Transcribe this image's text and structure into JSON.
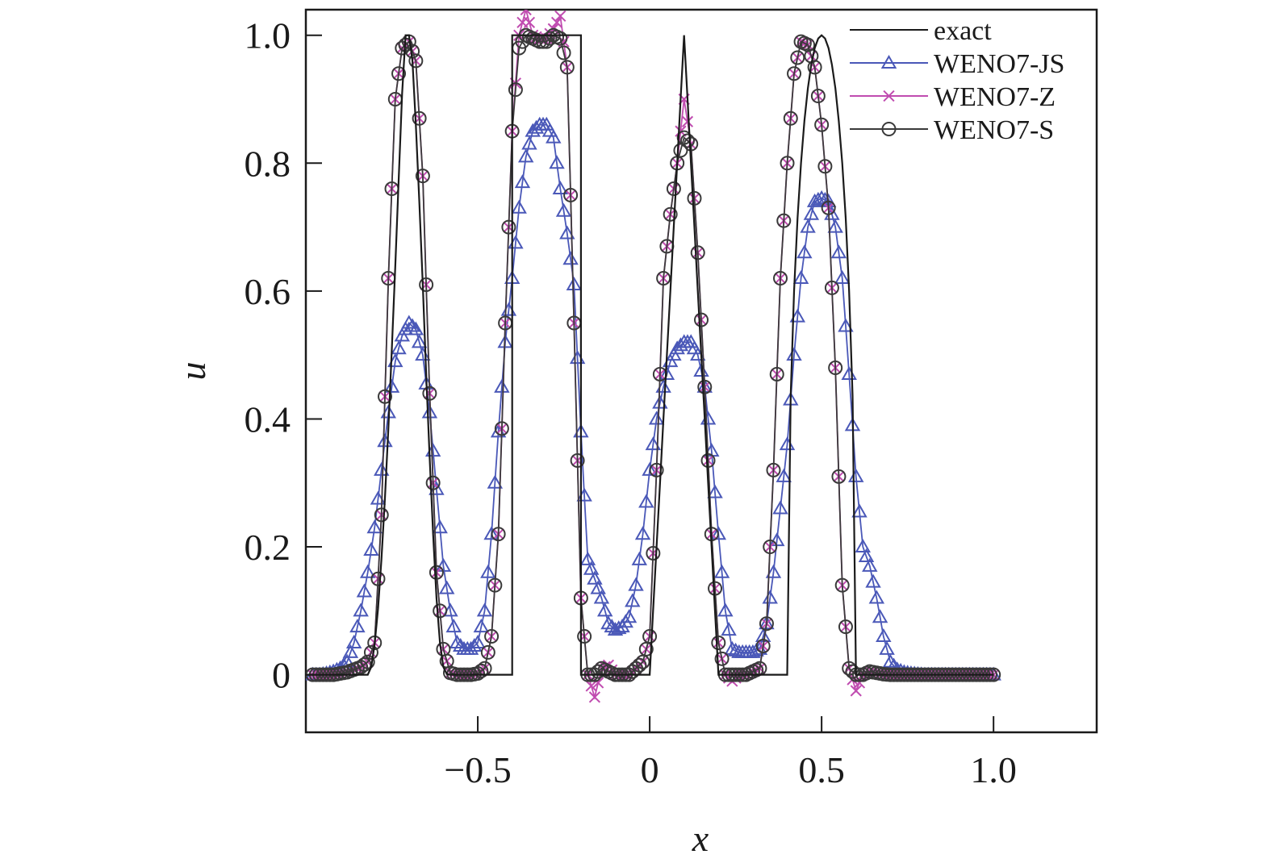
{
  "chart_data": {
    "type": "line",
    "title": "",
    "xlabel": "x",
    "ylabel": "u",
    "xlim": [
      -1.0,
      1.3
    ],
    "ylim": [
      -0.09,
      1.04
    ],
    "x_ticks": [
      -0.5,
      0,
      0.5,
      1.0
    ],
    "x_tick_labels": [
      "−0.5",
      "0",
      "0.5",
      "1.0"
    ],
    "y_ticks": [
      0,
      0.2,
      0.4,
      0.6,
      0.8,
      1.0
    ],
    "y_tick_labels": [
      "0",
      "0.2",
      "0.4",
      "0.6",
      "0.8",
      "1.0"
    ],
    "grid": false,
    "legend_position": "top-right",
    "sample_step": 0.01,
    "series": [
      {
        "name": "exact",
        "marker": "none",
        "color": "#1a1a1a",
        "x": [
          -1.0,
          -0.82,
          -0.81,
          -0.8,
          -0.79,
          -0.78,
          -0.77,
          -0.76,
          -0.75,
          -0.74,
          -0.73,
          -0.72,
          -0.71,
          -0.7,
          -0.69,
          -0.68,
          -0.67,
          -0.66,
          -0.65,
          -0.64,
          -0.63,
          -0.62,
          -0.61,
          -0.6,
          -0.59,
          -0.58,
          -0.4,
          -0.4,
          -0.2,
          -0.2,
          0.0,
          0.01,
          0.02,
          0.03,
          0.04,
          0.05,
          0.06,
          0.07,
          0.08,
          0.09,
          0.1,
          0.11,
          0.12,
          0.13,
          0.14,
          0.15,
          0.16,
          0.17,
          0.18,
          0.19,
          0.2,
          0.4,
          0.41,
          0.42,
          0.43,
          0.44,
          0.45,
          0.46,
          0.47,
          0.48,
          0.49,
          0.5,
          0.51,
          0.52,
          0.53,
          0.54,
          0.55,
          0.56,
          0.57,
          0.58,
          0.59,
          0.6,
          1.0
        ],
        "y": [
          0,
          0,
          0.012,
          0.047,
          0.104,
          0.181,
          0.276,
          0.386,
          0.508,
          0.638,
          0.773,
          0.909,
          1.0,
          1.0,
          0.96,
          0.86,
          0.74,
          0.61,
          0.47,
          0.34,
          0.22,
          0.12,
          0.05,
          0.012,
          0.001,
          0,
          0,
          1,
          1,
          0,
          0,
          0.1,
          0.2,
          0.3,
          0.4,
          0.5,
          0.6,
          0.7,
          0.8,
          0.9,
          1.0,
          0.9,
          0.8,
          0.7,
          0.6,
          0.5,
          0.4,
          0.3,
          0.2,
          0.1,
          0,
          0,
          0.436,
          0.6,
          0.714,
          0.8,
          0.866,
          0.917,
          0.954,
          0.98,
          0.995,
          1.0,
          0.995,
          0.98,
          0.954,
          0.917,
          0.866,
          0.8,
          0.714,
          0.6,
          0.436,
          0,
          0
        ]
      },
      {
        "name": "WENO7-JS",
        "marker": "triangle",
        "color": "#4a58b8",
        "x": [
          -0.98,
          -0.96,
          -0.94,
          -0.92,
          -0.9,
          -0.88,
          -0.86,
          -0.84,
          -0.82,
          -0.8,
          -0.78,
          -0.76,
          -0.74,
          -0.72,
          -0.7,
          -0.68,
          -0.66,
          -0.64,
          -0.62,
          -0.6,
          -0.58,
          -0.56,
          -0.54,
          -0.52,
          -0.5,
          -0.48,
          -0.46,
          -0.44,
          -0.42,
          -0.4,
          -0.38,
          -0.36,
          -0.34,
          -0.32,
          -0.3,
          -0.28,
          -0.26,
          -0.24,
          -0.22,
          -0.2,
          -0.18,
          -0.16,
          -0.14,
          -0.12,
          -0.1,
          -0.08,
          -0.06,
          -0.04,
          -0.02,
          0.0,
          0.02,
          0.04,
          0.06,
          0.08,
          0.1,
          0.12,
          0.14,
          0.16,
          0.18,
          0.2,
          0.22,
          0.24,
          0.26,
          0.28,
          0.3,
          0.32,
          0.34,
          0.36,
          0.38,
          0.4,
          0.42,
          0.44,
          0.46,
          0.48,
          0.5,
          0.52,
          0.54,
          0.56,
          0.58,
          0.6,
          0.62,
          0.64,
          0.66,
          0.68,
          0.7,
          0.72,
          0.74,
          0.76,
          0.78,
          0.8,
          0.85,
          0.9,
          0.95,
          1.0
        ],
        "y": [
          0,
          0,
          0.002,
          0.005,
          0.01,
          0.02,
          0.05,
          0.1,
          0.16,
          0.23,
          0.32,
          0.41,
          0.49,
          0.53,
          0.55,
          0.54,
          0.5,
          0.41,
          0.29,
          0.17,
          0.1,
          0.05,
          0.04,
          0.04,
          0.05,
          0.1,
          0.22,
          0.38,
          0.52,
          0.62,
          0.73,
          0.81,
          0.85,
          0.86,
          0.86,
          0.84,
          0.76,
          0.69,
          0.61,
          0.38,
          0.18,
          0.15,
          0.12,
          0.08,
          0.07,
          0.075,
          0.09,
          0.14,
          0.22,
          0.32,
          0.4,
          0.45,
          0.49,
          0.51,
          0.52,
          0.52,
          0.5,
          0.45,
          0.35,
          0.22,
          0.1,
          0.04,
          0.035,
          0.035,
          0.035,
          0.04,
          0.08,
          0.16,
          0.26,
          0.36,
          0.5,
          0.62,
          0.7,
          0.74,
          0.745,
          0.74,
          0.7,
          0.62,
          0.47,
          0.31,
          0.2,
          0.17,
          0.12,
          0.06,
          0.02,
          0.008,
          0.004,
          0.002,
          0.001,
          0,
          0,
          0,
          0,
          0
        ]
      },
      {
        "name": "WENO7-Z",
        "marker": "x",
        "color": "#c04cb0",
        "x": [
          -0.98,
          -0.96,
          -0.94,
          -0.92,
          -0.9,
          -0.88,
          -0.86,
          -0.84,
          -0.82,
          -0.8,
          -0.78,
          -0.76,
          -0.74,
          -0.72,
          -0.7,
          -0.68,
          -0.66,
          -0.64,
          -0.62,
          -0.6,
          -0.58,
          -0.56,
          -0.54,
          -0.52,
          -0.5,
          -0.48,
          -0.46,
          -0.44,
          -0.42,
          -0.4,
          -0.38,
          -0.36,
          -0.34,
          -0.32,
          -0.3,
          -0.28,
          -0.26,
          -0.24,
          -0.22,
          -0.2,
          -0.18,
          -0.16,
          -0.14,
          -0.12,
          -0.1,
          -0.08,
          -0.06,
          -0.04,
          -0.02,
          0.0,
          0.02,
          0.04,
          0.06,
          0.08,
          0.1,
          0.12,
          0.14,
          0.16,
          0.18,
          0.2,
          0.22,
          0.24,
          0.26,
          0.28,
          0.3,
          0.32,
          0.34,
          0.36,
          0.38,
          0.4,
          0.42,
          0.44,
          0.46,
          0.48,
          0.5,
          0.52,
          0.54,
          0.56,
          0.58,
          0.6,
          0.62,
          0.64,
          0.66,
          0.68,
          0.7,
          0.72,
          0.74,
          0.76,
          0.78,
          0.8,
          0.85,
          0.9,
          0.95,
          1.0
        ],
        "y": [
          0,
          0,
          0,
          0,
          0.002,
          0.004,
          0.008,
          0.012,
          0.02,
          0.05,
          0.25,
          0.62,
          0.9,
          0.98,
          0.99,
          0.96,
          0.78,
          0.44,
          0.16,
          0.04,
          0.003,
          0,
          0,
          0,
          0.002,
          0.01,
          0.06,
          0.22,
          0.55,
          0.85,
          1.0,
          1.04,
          1.0,
          0.995,
          0.995,
          1.01,
          1.03,
          0.95,
          0.55,
          0.12,
          0.0,
          -0.035,
          0.01,
          0.015,
          0.0,
          0.0,
          0.0,
          0.01,
          0.02,
          0.06,
          0.32,
          0.62,
          0.72,
          0.8,
          0.9,
          0.83,
          0.66,
          0.45,
          0.22,
          0.05,
          0.0,
          -0.01,
          0.0,
          0.0,
          0.005,
          0.01,
          0.08,
          0.32,
          0.62,
          0.8,
          0.94,
          0.99,
          0.985,
          0.95,
          0.86,
          0.73,
          0.48,
          0.14,
          0.01,
          -0.025,
          0.0,
          0.005,
          0.003,
          0.001,
          0,
          0,
          0,
          0,
          0,
          0,
          0,
          0,
          0,
          0
        ]
      },
      {
        "name": "WENO7-S",
        "marker": "circle",
        "color": "#3a3a3a",
        "x": [
          -0.98,
          -0.96,
          -0.94,
          -0.92,
          -0.9,
          -0.88,
          -0.86,
          -0.84,
          -0.82,
          -0.8,
          -0.78,
          -0.76,
          -0.74,
          -0.72,
          -0.7,
          -0.68,
          -0.66,
          -0.64,
          -0.62,
          -0.6,
          -0.58,
          -0.56,
          -0.54,
          -0.52,
          -0.5,
          -0.48,
          -0.46,
          -0.44,
          -0.42,
          -0.4,
          -0.38,
          -0.36,
          -0.34,
          -0.32,
          -0.3,
          -0.28,
          -0.26,
          -0.24,
          -0.22,
          -0.2,
          -0.18,
          -0.16,
          -0.14,
          -0.12,
          -0.1,
          -0.08,
          -0.06,
          -0.04,
          -0.02,
          0.0,
          0.02,
          0.04,
          0.06,
          0.08,
          0.1,
          0.12,
          0.14,
          0.16,
          0.18,
          0.2,
          0.22,
          0.24,
          0.26,
          0.28,
          0.3,
          0.32,
          0.34,
          0.36,
          0.38,
          0.4,
          0.42,
          0.44,
          0.46,
          0.48,
          0.5,
          0.52,
          0.54,
          0.56,
          0.58,
          0.6,
          0.62,
          0.64,
          0.66,
          0.68,
          0.7,
          0.72,
          0.74,
          0.76,
          0.78,
          0.8,
          0.85,
          0.9,
          0.95,
          1.0
        ],
        "y": [
          0,
          0,
          0,
          0,
          0.002,
          0.004,
          0.008,
          0.012,
          0.02,
          0.05,
          0.25,
          0.62,
          0.9,
          0.98,
          0.99,
          0.96,
          0.78,
          0.44,
          0.16,
          0.04,
          0.003,
          0,
          0,
          0,
          0.002,
          0.01,
          0.06,
          0.22,
          0.55,
          0.85,
          0.98,
          1.0,
          0.995,
          0.99,
          0.99,
          1.0,
          0.995,
          0.95,
          0.55,
          0.12,
          0.0,
          0.0,
          0.01,
          0.005,
          0.0,
          0.0,
          0.0,
          0.01,
          0.02,
          0.06,
          0.32,
          0.62,
          0.72,
          0.8,
          0.84,
          0.83,
          0.66,
          0.45,
          0.22,
          0.05,
          0.0,
          0.0,
          0.0,
          0.0,
          0.005,
          0.01,
          0.08,
          0.32,
          0.62,
          0.8,
          0.94,
          0.99,
          0.985,
          0.95,
          0.86,
          0.73,
          0.48,
          0.14,
          0.01,
          0.0,
          0.0,
          0.005,
          0.003,
          0.001,
          0,
          0,
          0,
          0,
          0,
          0,
          0,
          0,
          0,
          0
        ]
      }
    ]
  }
}
